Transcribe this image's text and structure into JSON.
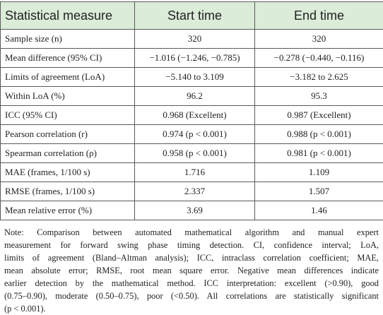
{
  "table": {
    "headers": [
      "Statistical measure",
      "Start time",
      "End time"
    ],
    "rows": [
      [
        "Sample size (n)",
        "320",
        "320"
      ],
      [
        "Mean difference (95% CI)",
        "−1.016 (−1.246, −0.785)",
        "−0.278 (−0.440, −0.116)"
      ],
      [
        "Limits of agreement (LoA)",
        "−5.140 to 3.109",
        "−3.182 to 2.625"
      ],
      [
        "Within LoA (%)",
        "96.2",
        "95.3"
      ],
      [
        "ICC (95% CI)",
        "0.968 (Excellent)",
        "0.987 (Excellent)"
      ],
      [
        "Pearson correlation (r)",
        "0.974 (p < 0.001)",
        "0.988 (p < 0.001)"
      ],
      [
        "Spearman correlation (ρ)",
        "0.958 (p < 0.001)",
        "0.981 (p < 0.001)"
      ],
      [
        "MAE (frames, 1/100 s)",
        "1.716",
        "1.109"
      ],
      [
        "RMSE (frames, 1/100 s)",
        "2.337",
        "1.507"
      ],
      [
        "Mean relative error (%)",
        "3.69",
        "1.46"
      ]
    ]
  },
  "note": {
    "lines": [
      "Note: Comparison between automated mathematical algorithm and manual expert",
      "measurement for forward swing phase timing detection. CI, confidence interval; LoA,",
      "limits of agreement (Bland–Altman analysis); ICC, intraclass correlation coefficient; MAE,",
      "mean absolute error; RMSE, root mean square error. Negative mean differences indicate",
      "earlier detection by the mathematical method. ICC interpretation: excellent (>0.90), good",
      "(0.75–0.90), moderate (0.50–0.75), poor (<0.50). All correlations are statistically significant",
      "(p < 0.001)."
    ]
  },
  "colors": {
    "header_background": "#dbecd9",
    "border": "#5a5a5a"
  }
}
